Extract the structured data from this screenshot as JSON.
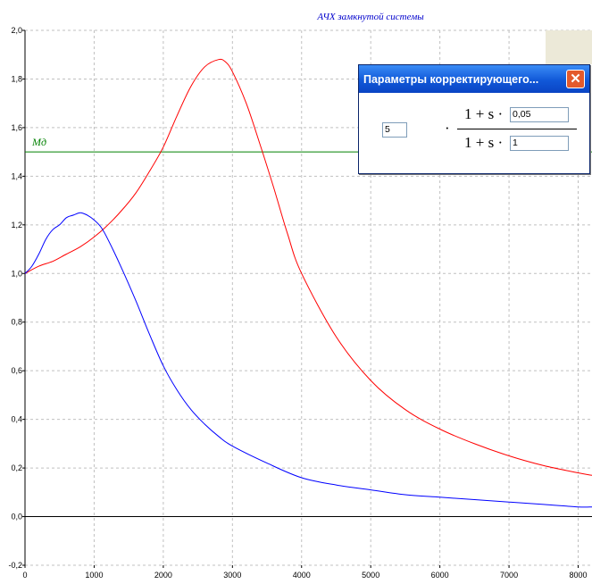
{
  "chart_data": {
    "type": "line",
    "title": "АЧХ замкнутой системы",
    "xlim": [
      0,
      8200
    ],
    "ylim": [
      -0.2,
      2.0
    ],
    "x_ticks": [
      "0",
      "1000",
      "2000",
      "3000",
      "4000",
      "5000",
      "6000",
      "7000",
      "8000"
    ],
    "y_ticks": [
      "-0,2",
      "0,0",
      "0,2",
      "0,4",
      "0,6",
      "0,8",
      "1,0",
      "1,2",
      "1,4",
      "1,6",
      "1,8",
      "2,0"
    ],
    "grid": true,
    "annotation": "Mд",
    "hline": {
      "y": 1.5,
      "color": "#008000"
    },
    "series": [
      {
        "color": "#ff0000",
        "x": [
          0,
          200,
          400,
          600,
          800,
          1000,
          1200,
          1400,
          1600,
          1800,
          2000,
          2200,
          2400,
          2600,
          2800,
          2900,
          3000,
          3200,
          3400,
          3600,
          3800,
          4000,
          4500,
          5000,
          5500,
          6000,
          6500,
          7000,
          7500,
          8000,
          8200
        ],
        "y": [
          1.0,
          1.03,
          1.05,
          1.08,
          1.11,
          1.15,
          1.2,
          1.26,
          1.33,
          1.42,
          1.52,
          1.65,
          1.77,
          1.85,
          1.88,
          1.87,
          1.83,
          1.7,
          1.53,
          1.35,
          1.16,
          1.0,
          0.74,
          0.56,
          0.44,
          0.36,
          0.3,
          0.25,
          0.21,
          0.18,
          0.17
        ]
      },
      {
        "color": "#0000ff",
        "x": [
          0,
          100,
          200,
          300,
          400,
          500,
          600,
          700,
          800,
          900,
          1000,
          1100,
          1200,
          1400,
          1600,
          1800,
          2000,
          2200,
          2400,
          2600,
          2800,
          3000,
          3500,
          4000,
          4500,
          5000,
          5500,
          6000,
          6500,
          7000,
          7500,
          8000,
          8200
        ],
        "y": [
          1.0,
          1.03,
          1.08,
          1.14,
          1.18,
          1.2,
          1.23,
          1.24,
          1.25,
          1.24,
          1.22,
          1.19,
          1.14,
          1.02,
          0.89,
          0.75,
          0.62,
          0.52,
          0.44,
          0.38,
          0.33,
          0.29,
          0.22,
          0.16,
          0.13,
          0.11,
          0.09,
          0.08,
          0.07,
          0.06,
          0.05,
          0.04,
          0.04
        ]
      }
    ]
  },
  "dialog": {
    "title": "Параметры корректирующего...",
    "gain": "5",
    "numerator_coef": "0,05",
    "denominator_coef": "1",
    "numerator_text": "1 + s ·",
    "denominator_text": "1 + s ·",
    "dot": "·",
    "close_symbol": "✕"
  }
}
